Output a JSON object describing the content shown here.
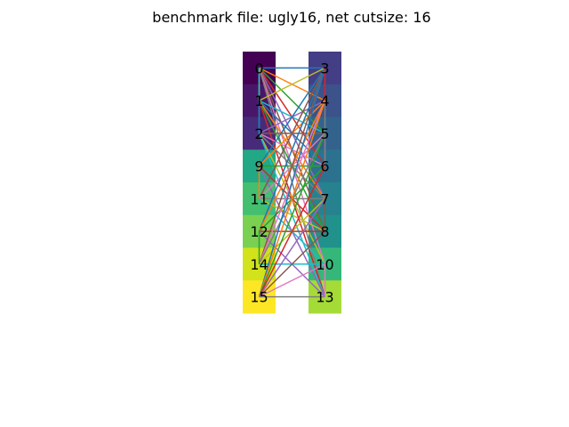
{
  "title": "benchmark file: ugly16, net cutsize: 16",
  "left_partition": [
    {
      "id": "0",
      "color": "#440154"
    },
    {
      "id": "1",
      "color": "#481668"
    },
    {
      "id": "2",
      "color": "#472a7a"
    },
    {
      "id": "9",
      "color": "#22a884"
    },
    {
      "id": "11",
      "color": "#44bf70"
    },
    {
      "id": "12",
      "color": "#7ad151"
    },
    {
      "id": "14",
      "color": "#d2e21b"
    },
    {
      "id": "15",
      "color": "#fde725"
    }
  ],
  "right_partition": [
    {
      "id": "3",
      "color": "#433e85"
    },
    {
      "id": "4",
      "color": "#3b528b"
    },
    {
      "id": "5",
      "color": "#33638d"
    },
    {
      "id": "6",
      "color": "#2c728e"
    },
    {
      "id": "7",
      "color": "#26828e"
    },
    {
      "id": "8",
      "color": "#21918c"
    },
    {
      "id": "10",
      "color": "#35b779"
    },
    {
      "id": "13",
      "color": "#a5db36"
    }
  ],
  "edge_colors": [
    "#1f77b4",
    "#ff7f0e",
    "#2ca02c",
    "#d62728",
    "#9467bd",
    "#8c564b",
    "#e377c2",
    "#7f7f7f",
    "#bcbd22",
    "#17becf"
  ],
  "edges": [
    [
      "0",
      "3"
    ],
    [
      "0",
      "4"
    ],
    [
      "0",
      "5"
    ],
    [
      "0",
      "6"
    ],
    [
      "0",
      "7"
    ],
    [
      "0",
      "8"
    ],
    [
      "0",
      "10"
    ],
    [
      "0",
      "13"
    ],
    [
      "1",
      "3"
    ],
    [
      "1",
      "5"
    ],
    [
      "1",
      "6"
    ],
    [
      "1",
      "7"
    ],
    [
      "1",
      "8"
    ],
    [
      "1",
      "13"
    ],
    [
      "2",
      "4"
    ],
    [
      "2",
      "5"
    ],
    [
      "2",
      "6"
    ],
    [
      "2",
      "7"
    ],
    [
      "2",
      "10"
    ],
    [
      "2",
      "13"
    ],
    [
      "9",
      "3"
    ],
    [
      "9",
      "4"
    ],
    [
      "9",
      "6"
    ],
    [
      "9",
      "8"
    ],
    [
      "9",
      "13"
    ],
    [
      "11",
      "3"
    ],
    [
      "11",
      "5"
    ],
    [
      "11",
      "7"
    ],
    [
      "11",
      "8"
    ],
    [
      "11",
      "10"
    ],
    [
      "12",
      "3"
    ],
    [
      "12",
      "4"
    ],
    [
      "12",
      "6"
    ],
    [
      "12",
      "8"
    ],
    [
      "12",
      "13"
    ],
    [
      "14",
      "3"
    ],
    [
      "14",
      "4"
    ],
    [
      "14",
      "5"
    ],
    [
      "14",
      "7"
    ],
    [
      "14",
      "10"
    ],
    [
      "15",
      "3"
    ],
    [
      "15",
      "4"
    ],
    [
      "15",
      "5"
    ],
    [
      "15",
      "6"
    ],
    [
      "15",
      "7"
    ],
    [
      "15",
      "8"
    ],
    [
      "15",
      "10"
    ],
    [
      "15",
      "13"
    ],
    [
      "0",
      "1"
    ],
    [
      "0",
      "2"
    ],
    [
      "1",
      "2"
    ],
    [
      "9",
      "11"
    ],
    [
      "12",
      "14"
    ],
    [
      "3",
      "4"
    ],
    [
      "5",
      "6"
    ],
    [
      "7",
      "8"
    ],
    [
      "10",
      "13"
    ],
    [
      "4",
      "6"
    ]
  ]
}
